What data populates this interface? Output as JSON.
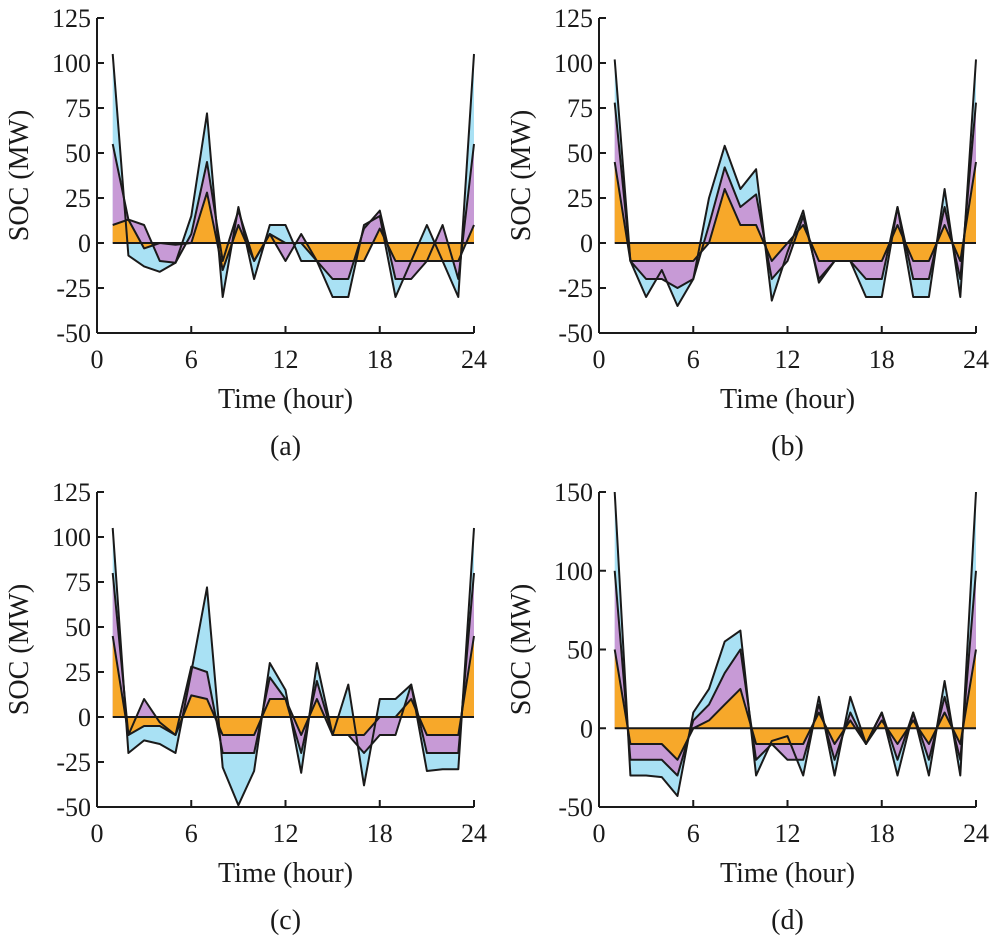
{
  "colors": {
    "outer_band": "#a9e1f4",
    "middle_band": "#c79ad6",
    "inner_band": "#f7a82a",
    "line": "#1a1a1a"
  },
  "chart_data": [
    {
      "type": "area",
      "caption": "(a)",
      "xlabel": "Time (hour)",
      "ylabel": "SOC (MW)",
      "xlim": [
        0,
        24
      ],
      "ylim": [
        -50,
        125
      ],
      "xticks": [
        0,
        6,
        12,
        18,
        24
      ],
      "yticks": [
        -50,
        -25,
        0,
        25,
        50,
        75,
        100,
        125
      ],
      "x": [
        1,
        2,
        3,
        4,
        5,
        6,
        7,
        8,
        9,
        10,
        11,
        12,
        13,
        14,
        15,
        16,
        17,
        18,
        19,
        20,
        21,
        22,
        23,
        24
      ],
      "series": [
        {
          "values": [
            105,
            -7,
            -13,
            -16,
            -11,
            15,
            72,
            -30,
            20,
            -20,
            10,
            10,
            -10,
            -10,
            -30,
            -30,
            10,
            15,
            -30,
            -10,
            10,
            -10,
            -30,
            105
          ]
        },
        {
          "values": [
            55,
            13,
            10,
            -10,
            -11,
            5,
            45,
            -10,
            18,
            -10,
            5,
            -10,
            5,
            -10,
            -20,
            -20,
            8,
            18,
            -20,
            -20,
            -10,
            10,
            -20,
            55
          ]
        },
        {
          "values": [
            10,
            13,
            -3,
            0,
            -1,
            0,
            28,
            -15,
            10,
            -10,
            5,
            0,
            0,
            -10,
            -10,
            -10,
            -10,
            8,
            -10,
            -10,
            -10,
            -10,
            -10,
            10
          ]
        }
      ]
    },
    {
      "type": "area",
      "caption": "(b)",
      "xlabel": "Time (hour)",
      "ylabel": "SOC (MW)",
      "xlim": [
        0,
        24
      ],
      "ylim": [
        -50,
        125
      ],
      "xticks": [
        0,
        6,
        12,
        18,
        24
      ],
      "yticks": [
        -50,
        -25,
        0,
        25,
        50,
        75,
        100,
        125
      ],
      "x": [
        1,
        2,
        3,
        4,
        5,
        6,
        7,
        8,
        9,
        10,
        11,
        12,
        13,
        14,
        15,
        16,
        17,
        18,
        19,
        20,
        21,
        22,
        23,
        24
      ],
      "series": [
        {
          "values": [
            102,
            -10,
            -30,
            -15,
            -35,
            -20,
            25,
            54,
            30,
            41,
            -32,
            -5,
            18,
            -22,
            -10,
            -10,
            -30,
            -30,
            20,
            -30,
            -30,
            30,
            -30,
            102
          ]
        },
        {
          "values": [
            78,
            -10,
            -20,
            -20,
            -25,
            -20,
            10,
            42,
            20,
            27,
            -20,
            -10,
            15,
            -20,
            -10,
            -10,
            -20,
            -20,
            20,
            -20,
            -20,
            20,
            -20,
            78
          ]
        },
        {
          "values": [
            45,
            -10,
            -10,
            -10,
            -10,
            -10,
            0,
            30,
            10,
            10,
            -10,
            0,
            10,
            -10,
            -10,
            -10,
            -10,
            -10,
            10,
            -10,
            -10,
            10,
            -10,
            45
          ]
        }
      ]
    },
    {
      "type": "area",
      "caption": "(c)",
      "xlabel": "Time (hour)",
      "ylabel": "SOC (MW)",
      "xlim": [
        0,
        24
      ],
      "ylim": [
        -50,
        125
      ],
      "xticks": [
        0,
        6,
        12,
        18,
        24
      ],
      "yticks": [
        -50,
        -25,
        0,
        25,
        50,
        75,
        100,
        125
      ],
      "x": [
        1,
        2,
        3,
        4,
        5,
        6,
        7,
        8,
        9,
        10,
        11,
        12,
        13,
        14,
        15,
        16,
        17,
        18,
        19,
        20,
        21,
        22,
        23,
        24
      ],
      "series": [
        {
          "values": [
            105,
            -20,
            -13,
            -15,
            -20,
            25,
            72,
            -28,
            -49,
            -30,
            30,
            15,
            -31,
            30,
            -10,
            18,
            -38,
            10,
            10,
            18,
            -30,
            -29,
            -29,
            105
          ]
        },
        {
          "values": [
            80,
            -10,
            10,
            -3,
            -10,
            28,
            25,
            -20,
            -20,
            -20,
            22,
            10,
            -20,
            20,
            -10,
            -10,
            -20,
            -10,
            -10,
            18,
            -20,
            -20,
            -20,
            80
          ]
        },
        {
          "values": [
            45,
            -10,
            -5,
            -5,
            -10,
            12,
            10,
            -10,
            -10,
            -10,
            10,
            10,
            -10,
            10,
            -10,
            -10,
            -10,
            0,
            0,
            10,
            -10,
            -10,
            -10,
            45
          ]
        }
      ]
    },
    {
      "type": "area",
      "caption": "(d)",
      "xlabel": "Time (hour)",
      "ylabel": "SOC (MW)",
      "xlim": [
        0,
        24
      ],
      "ylim": [
        -50,
        150
      ],
      "xticks": [
        0,
        6,
        12,
        18,
        24
      ],
      "yticks": [
        -50,
        0,
        50,
        100,
        150
      ],
      "x": [
        1,
        2,
        3,
        4,
        5,
        6,
        7,
        8,
        9,
        10,
        11,
        12,
        13,
        14,
        15,
        16,
        17,
        18,
        19,
        20,
        21,
        22,
        23,
        24
      ],
      "series": [
        {
          "values": [
            150,
            -30,
            -30,
            -31,
            -43,
            10,
            25,
            55,
            62,
            -30,
            -8,
            -5,
            -30,
            20,
            -30,
            20,
            -10,
            10,
            -30,
            10,
            -30,
            30,
            -30,
            150
          ]
        },
        {
          "values": [
            100,
            -20,
            -20,
            -20,
            -30,
            5,
            15,
            35,
            50,
            -20,
            -10,
            -20,
            -20,
            15,
            -20,
            10,
            -10,
            10,
            -20,
            10,
            -20,
            20,
            -20,
            100
          ]
        },
        {
          "values": [
            50,
            -10,
            -10,
            -10,
            -20,
            0,
            5,
            15,
            25,
            -10,
            -10,
            -10,
            -10,
            10,
            -10,
            5,
            -10,
            5,
            -10,
            5,
            -10,
            10,
            -10,
            50
          ]
        }
      ]
    }
  ]
}
